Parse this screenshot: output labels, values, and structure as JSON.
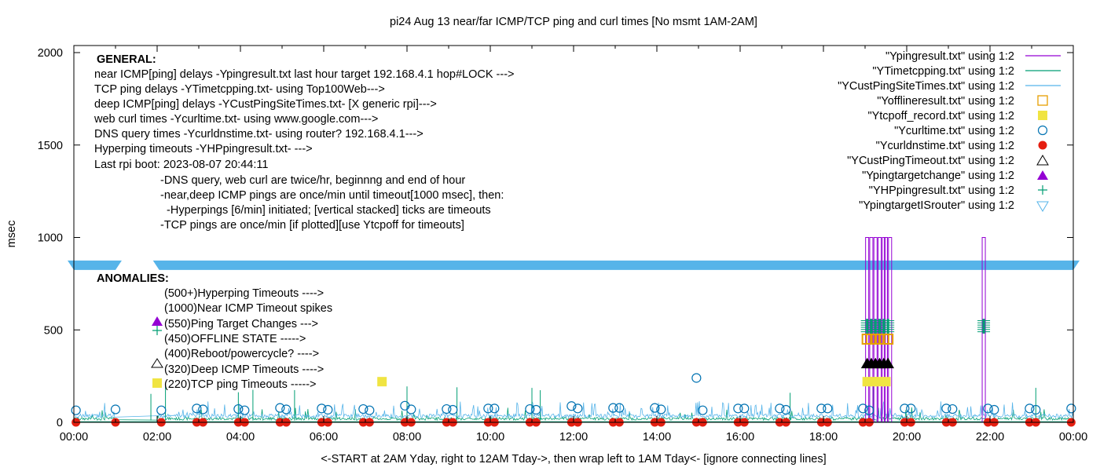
{
  "chart_data": {
    "type": "line",
    "title": "pi24 Aug 13  near/far ICMP/TCP ping and curl times [No msmt 1AM-2AM]",
    "xlabel": "<-START at 2AM Yday, right to 12AM Tday->, then wrap left to 1AM Tday<- [ignore connecting lines]",
    "ylabel": "msec",
    "xlim_hours": [
      0,
      24
    ],
    "ylim": [
      0,
      2050
    ],
    "x_ticks": [
      "00:00",
      "02:00",
      "04:00",
      "06:00",
      "08:00",
      "10:00",
      "12:00",
      "14:00",
      "16:00",
      "18:00",
      "20:00",
      "22:00",
      "00:00"
    ],
    "y_ticks": [
      "0",
      "500",
      "1000",
      "1500",
      "2000"
    ],
    "y_tick_values": [
      0,
      500,
      1000,
      1500,
      2000
    ],
    "grid": false,
    "legend_position": "top-right",
    "legend": [
      {
        "label": "\"Ypingresult.txt\" using 1:2",
        "style": "line",
        "color": "#9400d3"
      },
      {
        "label": "\"YTimetcpping.txt\" using 1:2",
        "style": "line",
        "color": "#009e73"
      },
      {
        "label": "\"YCustPingSiteTimes.txt\" using 1:2",
        "style": "line",
        "color": "#56b4e9"
      },
      {
        "label": "\"Yofflineresult.txt\" using 1:2",
        "style": "open-square",
        "color": "#e69f00"
      },
      {
        "label": "\"Ytcpoff_record.txt\" using 1:2",
        "style": "filled-square",
        "color": "#f0e442"
      },
      {
        "label": "\"Ycurltime.txt\" using 1:2",
        "style": "open-circle",
        "color": "#0072b2"
      },
      {
        "label": "\"Ycurldnstime.txt\" using 1:2",
        "style": "filled-circle",
        "color": "#e51e10"
      },
      {
        "label": "\"YCustPingTimeout.txt\" using 1:2",
        "style": "open-triangle",
        "color": "#000000"
      },
      {
        "label": "\"Ypingtargetchange\" using 1:2",
        "style": "filled-triangle",
        "color": "#9400d3"
      },
      {
        "label": "\"YHPpingresult.txt\" using 1:2",
        "style": "plus",
        "color": "#009e73"
      },
      {
        "label": "\"YpingtargetISrouter\" using 1:2",
        "style": "open-inverted-triangle",
        "color": "#56b4e9"
      }
    ],
    "series": {
      "ping_spikes_1000": [
        19.05,
        19.15,
        19.25,
        19.35,
        19.45,
        19.5,
        19.6,
        21.85
      ],
      "hyperping_timeouts_500plus": [
        19.05,
        19.15,
        19.25,
        19.35,
        19.45,
        19.55,
        21.85
      ],
      "offline_state_450": [
        19.05,
        19.15,
        19.25,
        19.35,
        19.45,
        19.55
      ],
      "deep_icmp_timeouts_320": [
        19.05,
        19.15,
        19.25,
        19.35,
        19.45,
        19.55
      ],
      "tcp_ping_timeouts_220": [
        7.4,
        19.05,
        19.2,
        19.35,
        19.5
      ],
      "ping_target_router_850": "continuous band 00:00-24:00 except 01:00-02:00",
      "curl_times": [
        {
          "x": 0.05,
          "y": 65
        },
        {
          "x": 1.0,
          "y": 70
        },
        {
          "x": 2.1,
          "y": 65
        },
        {
          "x": 2.95,
          "y": 75
        },
        {
          "x": 3.1,
          "y": 70
        },
        {
          "x": 3.95,
          "y": 72
        },
        {
          "x": 4.1,
          "y": 65
        },
        {
          "x": 4.95,
          "y": 78
        },
        {
          "x": 5.1,
          "y": 70
        },
        {
          "x": 5.95,
          "y": 75
        },
        {
          "x": 6.1,
          "y": 68
        },
        {
          "x": 6.95,
          "y": 72
        },
        {
          "x": 7.1,
          "y": 65
        },
        {
          "x": 7.95,
          "y": 90
        },
        {
          "x": 8.1,
          "y": 70
        },
        {
          "x": 8.95,
          "y": 72
        },
        {
          "x": 9.1,
          "y": 68
        },
        {
          "x": 9.95,
          "y": 75
        },
        {
          "x": 10.1,
          "y": 75
        },
        {
          "x": 10.95,
          "y": 72
        },
        {
          "x": 11.1,
          "y": 68
        },
        {
          "x": 11.95,
          "y": 88
        },
        {
          "x": 12.1,
          "y": 75
        },
        {
          "x": 12.95,
          "y": 78
        },
        {
          "x": 13.1,
          "y": 78
        },
        {
          "x": 13.95,
          "y": 78
        },
        {
          "x": 14.1,
          "y": 70
        },
        {
          "x": 14.95,
          "y": 240
        },
        {
          "x": 15.1,
          "y": 65
        },
        {
          "x": 15.95,
          "y": 75
        },
        {
          "x": 16.1,
          "y": 75
        },
        {
          "x": 16.95,
          "y": 75
        },
        {
          "x": 17.1,
          "y": 68
        },
        {
          "x": 17.95,
          "y": 75
        },
        {
          "x": 18.1,
          "y": 75
        },
        {
          "x": 18.95,
          "y": 75
        },
        {
          "x": 19.1,
          "y": 65
        },
        {
          "x": 19.95,
          "y": 75
        },
        {
          "x": 20.1,
          "y": 75
        },
        {
          "x": 20.95,
          "y": 75
        },
        {
          "x": 21.1,
          "y": 72
        },
        {
          "x": 21.95,
          "y": 75
        },
        {
          "x": 22.1,
          "y": 68
        },
        {
          "x": 22.95,
          "y": 75
        },
        {
          "x": 23.1,
          "y": 68
        },
        {
          "x": 23.95,
          "y": 75
        }
      ],
      "dns_times_hours": [
        0.05,
        1.0,
        2.1,
        2.95,
        3.1,
        3.95,
        4.1,
        4.95,
        5.1,
        5.95,
        6.1,
        6.95,
        7.1,
        7.95,
        8.1,
        8.95,
        9.1,
        9.95,
        10.1,
        10.95,
        11.1,
        11.95,
        12.1,
        12.95,
        13.1,
        13.95,
        14.1,
        14.95,
        15.1,
        15.95,
        16.1,
        16.95,
        17.1,
        17.95,
        18.1,
        18.95,
        19.1,
        19.95,
        20.1,
        20.95,
        21.1,
        21.95,
        22.1,
        22.95,
        23.1,
        23.95
      ],
      "dns_times_value": 0,
      "deep_icmp_baseline": 25,
      "tcp_ping_baseline": 12
    }
  },
  "annotations": {
    "general_heading": "GENERAL:",
    "general_lines": [
      "near ICMP[ping] delays -Ypingresult.txt last hour target 192.168.4.1 hop#LOCK --->",
      "TCP ping delays -YTimetcpping.txt- using Top100Web--->",
      "deep ICMP[ping] delays -YCustPingSiteTimes.txt- [X generic rpi]--->",
      "web curl times -Ycurltime.txt- using www.google.com--->",
      "DNS query times -Ycurldnstime.txt- using router? 192.168.4.1--->",
      "Hyperping timeouts -YHPpingresult.txt- --->",
      "Last rpi boot: 2023-08-07 20:44:11"
    ],
    "notes": [
      "-DNS query, web curl are twice/hr, beginnng and end of hour",
      "-near,deep ICMP pings are once/min until timeout[1000 msec], then:",
      "  -Hyperpings [6/min] initiated; [vertical stacked] ticks are timeouts",
      "-TCP pings are once/min [if plotted][use Ytcpoff for timeouts]"
    ],
    "anomalies_heading": "ANOMALIES:",
    "anomalies": [
      "(500+)Hyperping Timeouts ---->",
      "(1000)Near ICMP Timeout spikes",
      "(550)Ping Target Changes --->",
      "(450)OFFLINE STATE ----->",
      "(400)Reboot/powercycle? ---->",
      "(320)Deep ICMP Timeouts ---->",
      "(220)TCP ping Timeouts ----->"
    ]
  }
}
